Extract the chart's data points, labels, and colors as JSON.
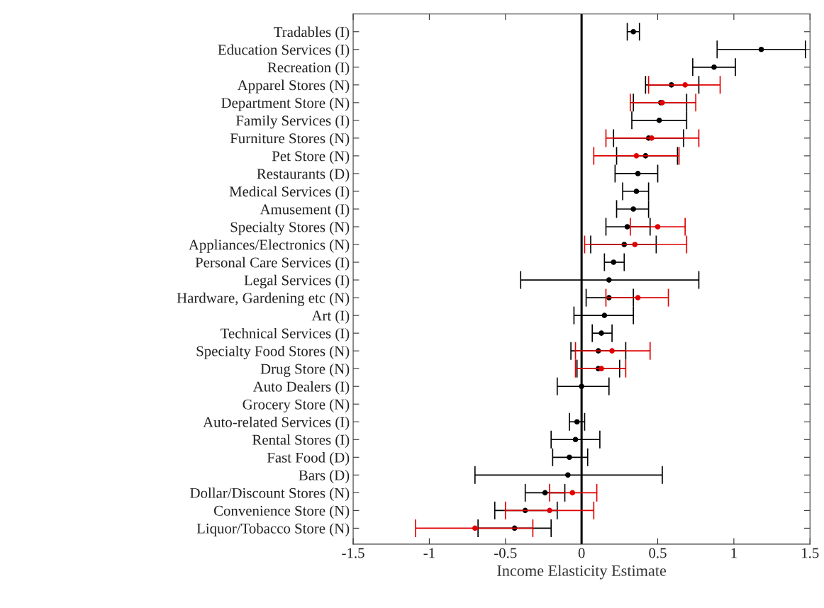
{
  "chart_data": {
    "type": "scatter",
    "orientation": "horizontal",
    "xlabel": "Income Elasticity Estimate",
    "categories": [
      "Tradables (I)",
      "Education Services (I)",
      "Recreation (I)",
      "Apparel Stores (N)",
      "Department Store (N)",
      "Family Services (I)",
      "Furniture Stores (N)",
      "Pet Store (N)",
      "Restaurants (D)",
      "Medical Services (I)",
      "Amusement (I)",
      "Specialty Stores (N)",
      "Appliances/Electronics (N)",
      "Personal Care Services (I)",
      "Legal Services (I)",
      "Hardware, Gardening etc (N)",
      "Art (I)",
      "Technical Services (I)",
      "Specialty Food Stores (N)",
      "Drug Store (N)",
      "Auto Dealers (I)",
      "Grocery Store (N)",
      "Auto-related Services (I)",
      "Rental Stores (I)",
      "Fast Food (D)",
      "Bars (D)",
      "Dollar/Discount Stores (N)",
      "Convenience Store (N)",
      "Liquor/Tobacco Store (N)"
    ],
    "series": [
      {
        "color": "#000000",
        "values": [
          0.34,
          1.18,
          0.87,
          0.59,
          0.52,
          0.51,
          0.44,
          0.42,
          0.37,
          0.36,
          0.34,
          0.3,
          0.28,
          0.21,
          0.18,
          0.18,
          0.15,
          0.13,
          0.11,
          0.11,
          0.0,
          null,
          -0.03,
          -0.04,
          -0.08,
          -0.09,
          -0.24,
          -0.37,
          -0.44
        ],
        "errors": [
          [
            0.3,
            0.38
          ],
          [
            0.89,
            1.47
          ],
          [
            0.73,
            1.01
          ],
          [
            0.42,
            0.77
          ],
          [
            0.34,
            0.69
          ],
          [
            0.33,
            0.69
          ],
          [
            0.21,
            0.67
          ],
          [
            0.23,
            0.63
          ],
          [
            0.22,
            0.5
          ],
          [
            0.27,
            0.44
          ],
          [
            0.23,
            0.44
          ],
          [
            0.16,
            0.45
          ],
          [
            0.06,
            0.49
          ],
          [
            0.15,
            0.28
          ],
          [
            -0.4,
            0.77
          ],
          [
            0.03,
            0.34
          ],
          [
            -0.05,
            0.34
          ],
          [
            0.07,
            0.2
          ],
          [
            -0.07,
            0.29
          ],
          [
            -0.03,
            0.25
          ],
          [
            -0.16,
            0.18
          ],
          null,
          [
            -0.08,
            0.02
          ],
          [
            -0.2,
            0.12
          ],
          [
            -0.19,
            0.04
          ],
          [
            -0.7,
            0.53
          ],
          [
            -0.37,
            -0.11
          ],
          [
            -0.57,
            -0.16
          ],
          [
            -0.68,
            -0.2
          ]
        ]
      },
      {
        "color": "#e00000",
        "values": [
          null,
          null,
          null,
          0.68,
          0.53,
          null,
          0.46,
          0.36,
          null,
          null,
          null,
          0.5,
          0.35,
          null,
          null,
          0.37,
          null,
          null,
          0.2,
          0.13,
          null,
          null,
          null,
          null,
          null,
          null,
          -0.06,
          -0.21,
          -0.7
        ],
        "errors": [
          null,
          null,
          null,
          [
            0.44,
            0.91
          ],
          [
            0.32,
            0.75
          ],
          null,
          [
            0.16,
            0.77
          ],
          [
            0.08,
            0.64
          ],
          null,
          null,
          null,
          [
            0.32,
            0.68
          ],
          [
            0.02,
            0.69
          ],
          null,
          null,
          [
            0.16,
            0.57
          ],
          null,
          null,
          [
            -0.04,
            0.45
          ],
          [
            -0.04,
            0.29
          ],
          null,
          null,
          null,
          null,
          null,
          null,
          [
            -0.21,
            0.1
          ],
          [
            -0.5,
            0.08
          ],
          [
            -1.09,
            -0.32
          ]
        ]
      }
    ],
    "xlim": [
      -1.5,
      1.5
    ],
    "xticks": [
      -1.5,
      -1,
      -0.5,
      0,
      0.5,
      1,
      1.5
    ],
    "ref_lines": [
      {
        "axis": "x",
        "value": 0,
        "color": "#000000"
      }
    ],
    "marker": "circle",
    "grid": false,
    "legend": false
  }
}
